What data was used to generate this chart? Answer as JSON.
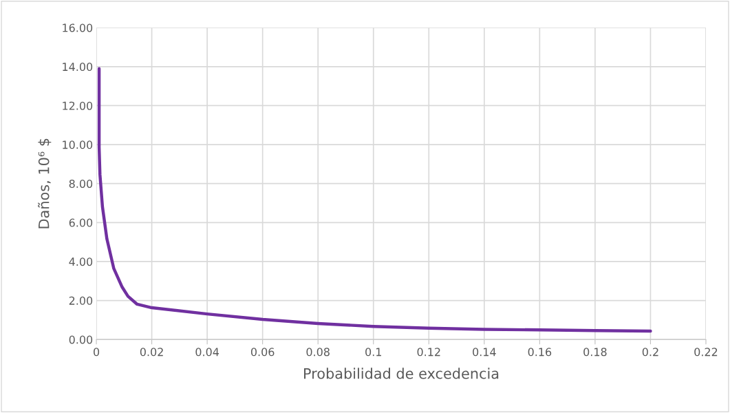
{
  "chart_data": {
    "type": "line",
    "xlabel": "Probabilidad de excedencia",
    "ylabel": "Daños, 10⁶ $",
    "series": [
      {
        "color": "#7030a0",
        "x": [
          0.001,
          0.001,
          0.0013,
          0.0022,
          0.0038,
          0.0063,
          0.0093,
          0.0114,
          0.0147,
          0.02,
          0.04,
          0.06,
          0.08,
          0.1,
          0.12,
          0.14,
          0.16,
          0.18,
          0.2
        ],
        "values": [
          13.9,
          9.87,
          8.46,
          6.81,
          5.16,
          3.64,
          2.69,
          2.22,
          1.81,
          1.63,
          1.31,
          1.03,
          0.82,
          0.67,
          0.58,
          0.52,
          0.49,
          0.46,
          0.43
        ]
      }
    ],
    "xlim": [
      0,
      0.22
    ],
    "xticks": [
      0,
      0.02,
      0.04,
      0.06,
      0.08,
      0.1,
      0.12,
      0.14,
      0.16,
      0.18,
      0.2,
      0.22
    ],
    "ylim": [
      0,
      16
    ],
    "yticks": [
      {
        "value": 0,
        "label": "0.00"
      },
      {
        "value": 2,
        "label": "2.00"
      },
      {
        "value": 4,
        "label": "4.00"
      },
      {
        "value": 6,
        "label": "6.00"
      },
      {
        "value": 8,
        "label": "8.00"
      },
      {
        "value": 10,
        "label": "10.00"
      },
      {
        "value": 12,
        "label": "12.00"
      },
      {
        "value": 14,
        "label": "14.00"
      },
      {
        "value": 16,
        "label": "16.00"
      }
    ],
    "grid": true,
    "marker": "none",
    "line_style": "solid"
  }
}
